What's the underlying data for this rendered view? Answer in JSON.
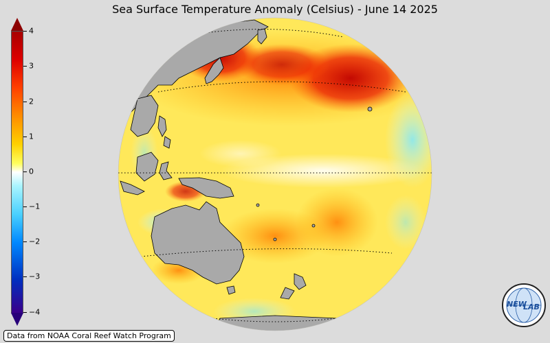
{
  "title": "Sea Surface Temperature Anomaly (Celsius) - June 14 2025",
  "colorbar": {
    "ticks": [
      "4",
      "3",
      "2",
      "1",
      "0",
      "−1",
      "−2",
      "−3",
      "−4"
    ],
    "max": 4,
    "min": -4,
    "colors": [
      "#a80000",
      "#ff4000",
      "#ff8c00",
      "#ffff60",
      "#ffffff",
      "#4ad0ff",
      "#0088ff",
      "#3a008a"
    ]
  },
  "credit": "Data from NOAA Coral Reef Watch Program",
  "logo": {
    "text_left": "NEW",
    "text_right": "LAB",
    "icon": "globe-logo-icon"
  },
  "map": {
    "projection": "orthographic",
    "land_color": "#a9a9a9",
    "ocean_colors": {
      "warm": "#ff8c00",
      "hot": "#dd0000",
      "neutral": "#fff6a0",
      "cool": "#a8f4ff"
    }
  }
}
